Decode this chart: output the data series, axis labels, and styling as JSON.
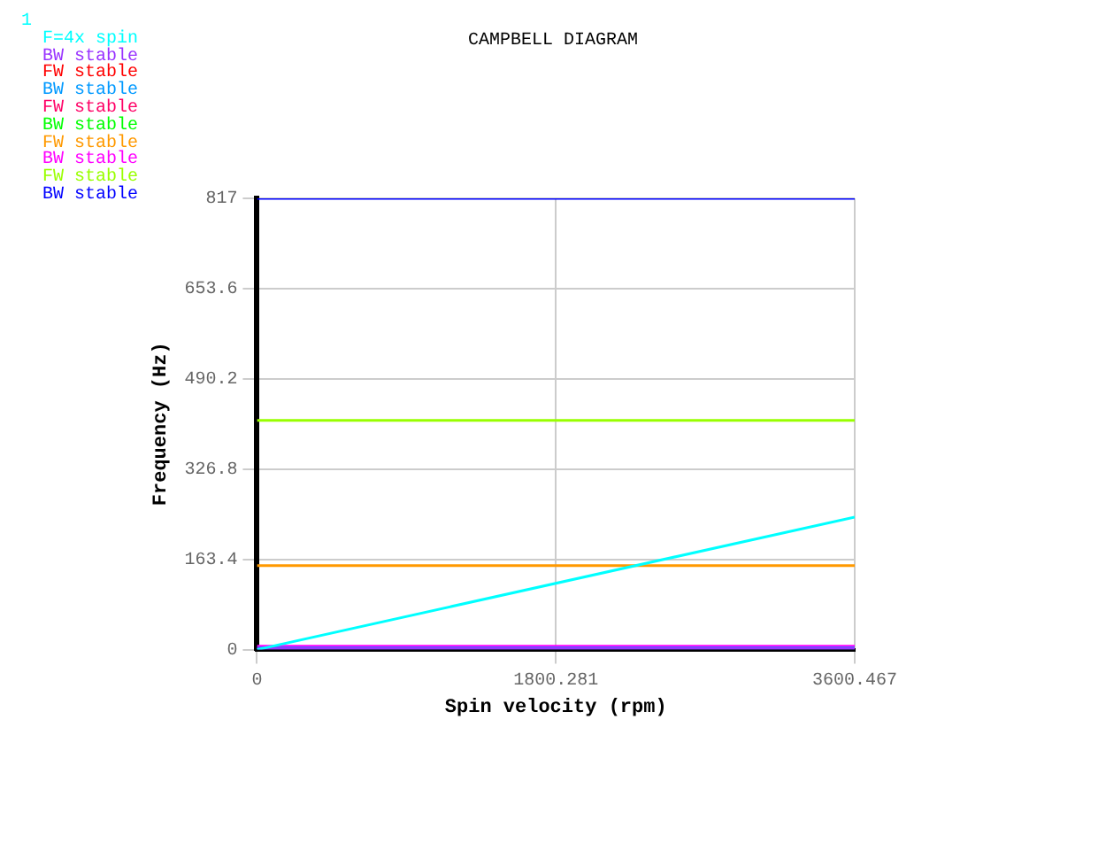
{
  "chart_data": {
    "type": "line",
    "title": "CAMPBELL DIAGRAM",
    "xlabel": "Spin velocity (rpm)",
    "ylabel": "Frequency (Hz)",
    "annotations": [
      "1"
    ],
    "x": [
      0,
      3600.467
    ],
    "series": [
      {
        "name": "F=4x spin",
        "color": "#00ffff",
        "values": [
          0,
          240
        ]
      },
      {
        "name": "BW stable",
        "color": "#9933ff",
        "values": [
          2,
          2
        ]
      },
      {
        "name": "FW stable",
        "color": "#ff0000",
        "values": [
          null,
          null
        ]
      },
      {
        "name": "BW stable",
        "color": "#0099ff",
        "values": [
          3,
          3
        ]
      },
      {
        "name": "FW stable",
        "color": "#ff0066",
        "values": [
          null,
          null
        ]
      },
      {
        "name": "BW stable",
        "color": "#00ff00",
        "values": [
          null,
          null
        ]
      },
      {
        "name": "FW stable",
        "color": "#ff9900",
        "values": [
          152,
          152
        ]
      },
      {
        "name": "BW stable",
        "color": "#ff00ff",
        "values": [
          6,
          6
        ]
      },
      {
        "name": "FW stable",
        "color": "#99ff00",
        "values": [
          415,
          415
        ]
      },
      {
        "name": "BW stable",
        "color": "#0000ff",
        "values": [
          817,
          817
        ]
      }
    ],
    "xlim": [
      0,
      3600.467
    ],
    "xticks": [
      0,
      1800.281,
      3600.467
    ],
    "ylim": [
      0,
      817
    ],
    "yticks": [
      0,
      163.4,
      326.8,
      490.2,
      653.6,
      817
    ],
    "grid": true,
    "legend": "top left",
    "marker": "none",
    "line_style": "solid"
  }
}
